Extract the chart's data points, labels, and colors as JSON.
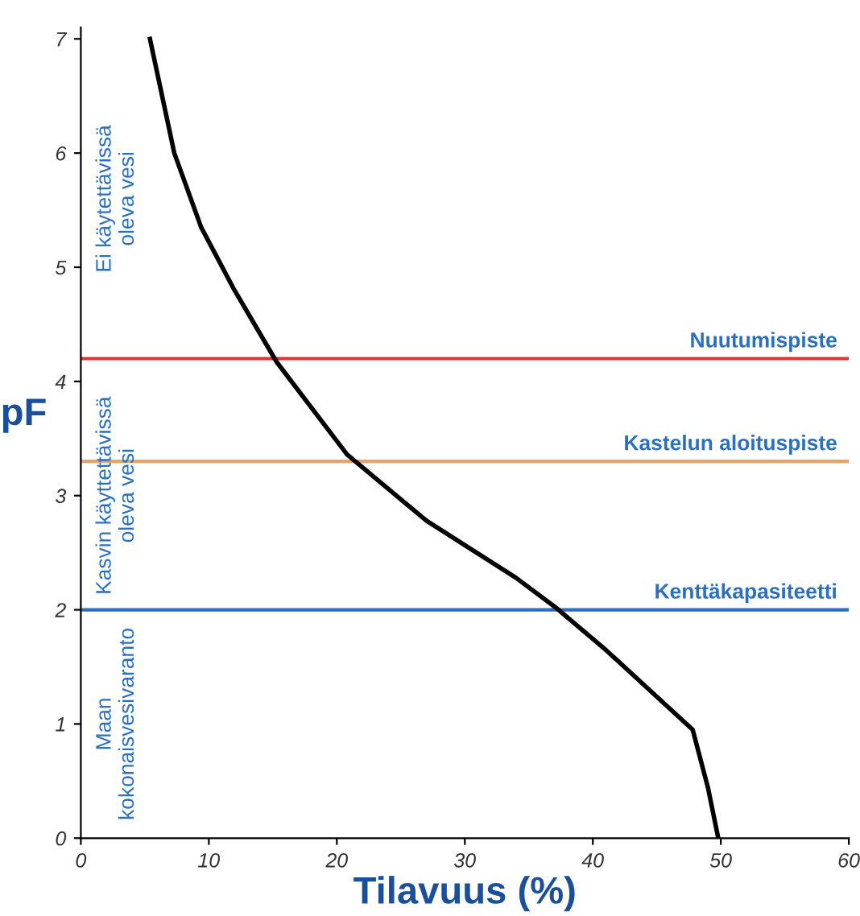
{
  "chart_data": {
    "type": "line",
    "xlabel": "Tilavuus (%)",
    "ylabel": "pF",
    "x": [
      5.4,
      7.3,
      9.4,
      11.9,
      15.3,
      20.8,
      27,
      34,
      37.1,
      40.9,
      47.8,
      49,
      49.8
    ],
    "series": [
      {
        "color": "#000000",
        "values": [
          7,
          6.0,
          5.35,
          4.82,
          4.17,
          3.36,
          2.78,
          2.28,
          2.02,
          1.66,
          0.95,
          0.44,
          0
        ]
      }
    ],
    "xlim": [
      0,
      60
    ],
    "ylim": [
      0,
      7.1
    ],
    "xticks": [
      0,
      10,
      20,
      30,
      40,
      50,
      60
    ],
    "yticks": [
      0,
      1,
      2,
      3,
      4,
      5,
      6,
      7
    ],
    "ref_lines": [
      {
        "axis": "y",
        "value": 4.2,
        "label": "Nuutumispiste",
        "color": "#e5322d"
      },
      {
        "axis": "y",
        "value": 3.3,
        "label": "Kastelun aloituspiste",
        "color": "#f0a060"
      },
      {
        "axis": "y",
        "value": 2.0,
        "label": "Kenttäkapasiteetti",
        "color": "#2a6fc0"
      }
    ],
    "annotations": [
      "Ei käytettävissä\noleva vesi",
      "Kasvin käyttettävissä\noleva vesi",
      "Maan\nkokonaisvesivaranto"
    ],
    "grid": false,
    "marker": "none",
    "line_style": "solid"
  }
}
